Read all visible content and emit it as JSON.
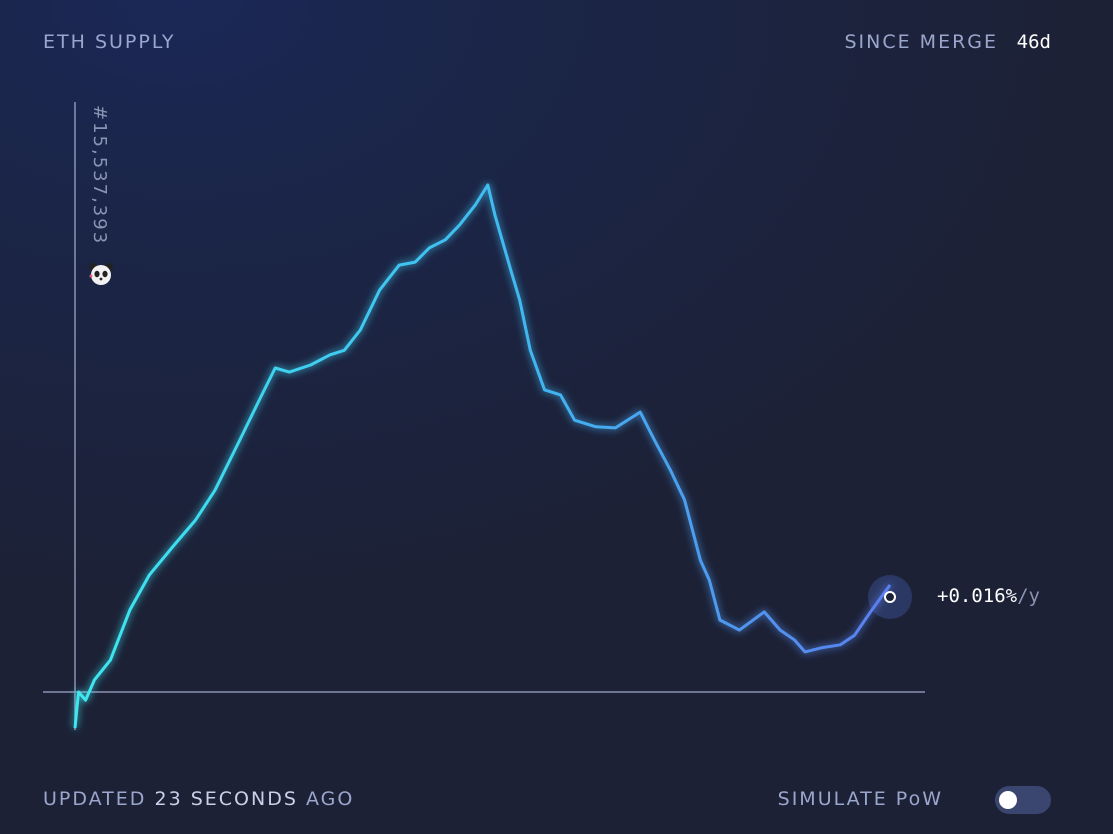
{
  "header": {
    "title": "ETH SUPPLY",
    "since_label": "SINCE MERGE",
    "since_value": "46d"
  },
  "footer": {
    "updated_prefix": "UPDATED",
    "updated_value": "23 SECONDS",
    "updated_suffix": "AGO",
    "simulate_label": "SIMULATE PoW",
    "simulate_on": false
  },
  "marker": {
    "block": "#15,537,393",
    "icon": "panda-icon"
  },
  "rate": {
    "value": "+0.016%",
    "unit": "/y"
  },
  "colors": {
    "line_start": "#3ee8f0",
    "line_end": "#5b7ff0",
    "axis": "#8a93b3"
  },
  "chart_data": {
    "type": "line",
    "title": "",
    "xlabel": "",
    "ylabel": "",
    "x_unit": "days since merge",
    "xlim": [
      0,
      46
    ],
    "ylim": [
      -10,
      100
    ],
    "grid": false,
    "x": [
      0,
      0.2,
      0.6,
      1.1,
      2.0,
      3.1,
      4.2,
      5.6,
      6.8,
      7.9,
      9.3,
      10.4,
      11.3,
      12.1,
      13.3,
      14.4,
      15.2,
      16.1,
      17.2,
      18.3,
      19.2,
      20.0,
      20.9,
      21.7,
      22.6,
      23.3,
      23.7,
      24.6,
      25.1,
      25.7,
      26.5,
      27.4,
      28.2,
      29.4,
      30.5,
      31.9,
      32.7,
      33.6,
      34.4,
      35.3,
      35.8,
      36.4,
      37.5,
      38.9,
      39.8,
      40.6,
      41.2,
      42.1,
      43.2,
      44.0,
      44.9,
      46.0
    ],
    "y": [
      -7.1,
      0,
      -1.6,
      2.4,
      6.3,
      16.2,
      23.1,
      29.0,
      33.9,
      39.8,
      49.7,
      57.6,
      63.9,
      63.1,
      64.5,
      66.5,
      67.4,
      71.4,
      79.3,
      84.2,
      84.8,
      87.6,
      89.2,
      92.1,
      96.1,
      100,
      94.1,
      83.2,
      77.3,
      67.4,
      59.6,
      58.6,
      53.6,
      52.3,
      52.1,
      55.2,
      49.7,
      43.8,
      37.9,
      26.0,
      22.1,
      14.2,
      12.2,
      15.8,
      12.2,
      10.3,
      7.9,
      8.7,
      9.3,
      11.2,
      15.8,
      21.1
    ]
  }
}
